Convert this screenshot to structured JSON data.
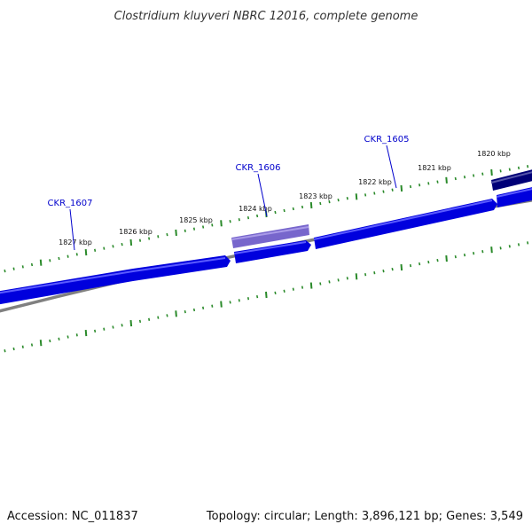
{
  "title": "Clostridium kluyveri NBRC 12016, complete genome",
  "footer": {
    "accession": "Accession: NC_011837",
    "summary": "Topology: circular; Length: 3,896,121 bp; Genes: 3,549"
  },
  "colors": {
    "gene_forward": "#0000dd",
    "gene_reverse": "#7766cc",
    "gene_dark": "#000077",
    "backbone": "#808080",
    "ticks": "#2a8a2a",
    "label": "#0000cc"
  },
  "ticks": [
    {
      "kbp": 1820,
      "label": "1820 kbp"
    },
    {
      "kbp": 1821,
      "label": "1821 kbp"
    },
    {
      "kbp": 1822,
      "label": "1822 kbp"
    },
    {
      "kbp": 1823,
      "label": "1823 kbp"
    },
    {
      "kbp": 1824,
      "label": "1824 kbp"
    },
    {
      "kbp": 1825,
      "label": "1825 kbp"
    },
    {
      "kbp": 1826,
      "label": "1826 kbp"
    },
    {
      "kbp": 1827,
      "label": "1827 kbp"
    }
  ],
  "gene_labels": [
    {
      "name": "CKR_1607"
    },
    {
      "name": "CKR_1606"
    },
    {
      "name": "CKR_1605"
    }
  ]
}
